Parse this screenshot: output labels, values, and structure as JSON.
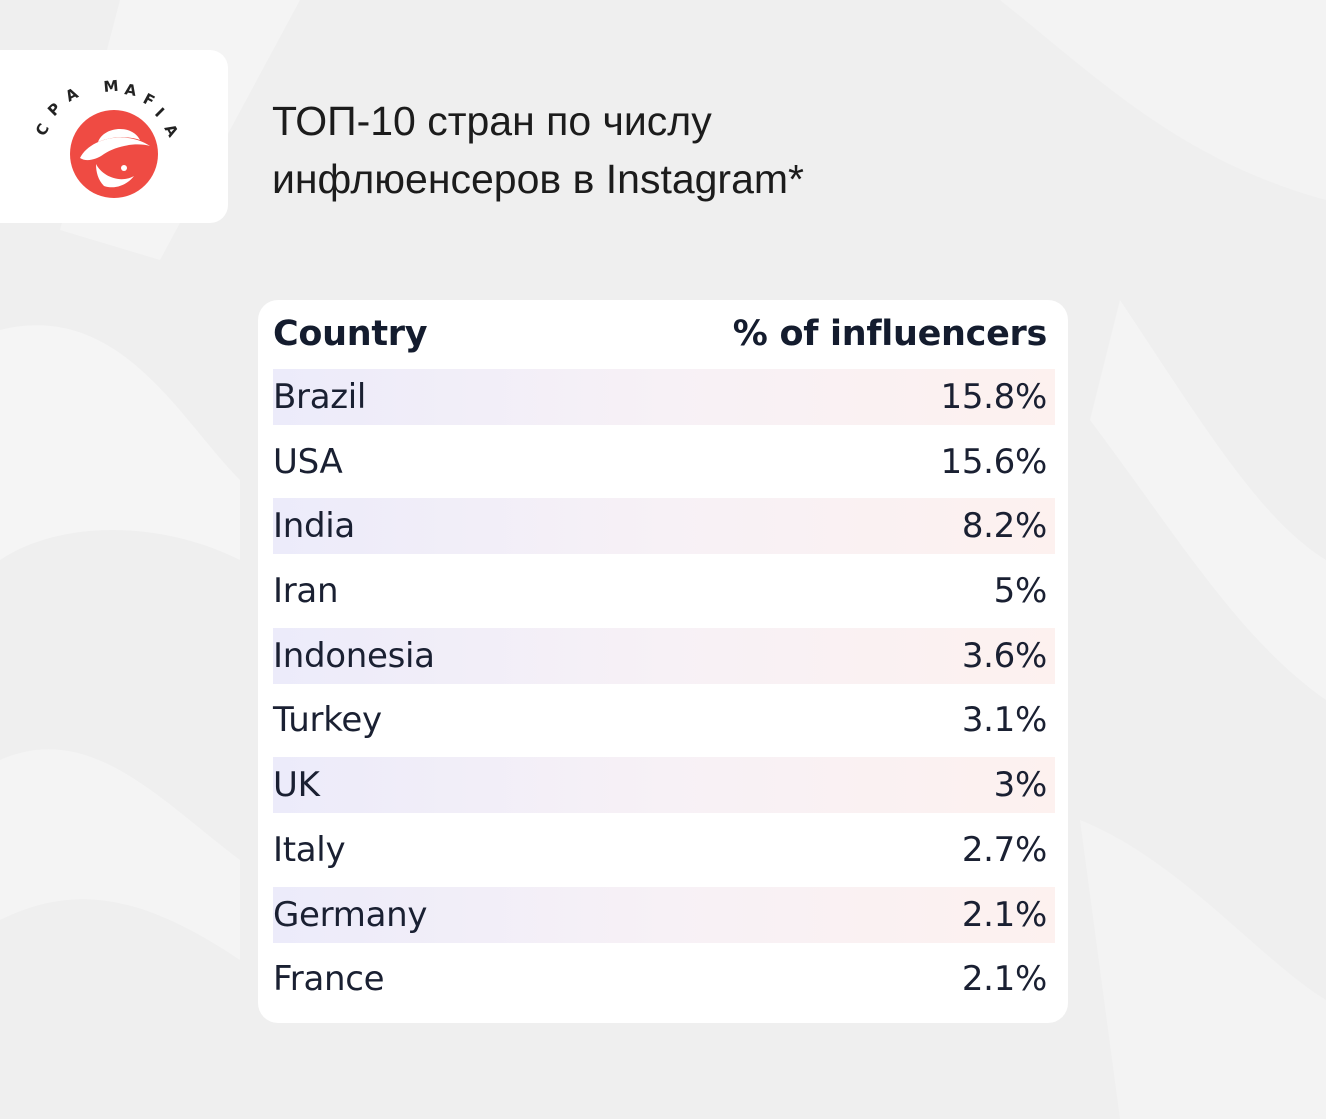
{
  "brand": {
    "name": "CPA MAFIA",
    "accent_color": "#ef4b43",
    "icon": "mafia-hat-logo"
  },
  "title": {
    "line1": "ТОП-10 стран по числу",
    "line2": "инфлюенсеров в Instagram*"
  },
  "chart_data": {
    "type": "table",
    "columns": [
      "Country",
      "% of influencers"
    ],
    "rows": [
      {
        "country": "Brazil",
        "value": "15.8%"
      },
      {
        "country": "USA",
        "value": "15.6%"
      },
      {
        "country": "India",
        "value": "8.2%"
      },
      {
        "country": "Iran",
        "value": "5%"
      },
      {
        "country": "Indonesia",
        "value": "3.6%"
      },
      {
        "country": "Turkey",
        "value": "3.1%"
      },
      {
        "country": "UK",
        "value": "3%"
      },
      {
        "country": "Italy",
        "value": "2.7%"
      },
      {
        "country": "Germany",
        "value": "2.1%"
      },
      {
        "country": "France",
        "value": "2.1%"
      }
    ],
    "title": "ТОП-10 стран по числу инфлюенсеров в Instagram*"
  }
}
